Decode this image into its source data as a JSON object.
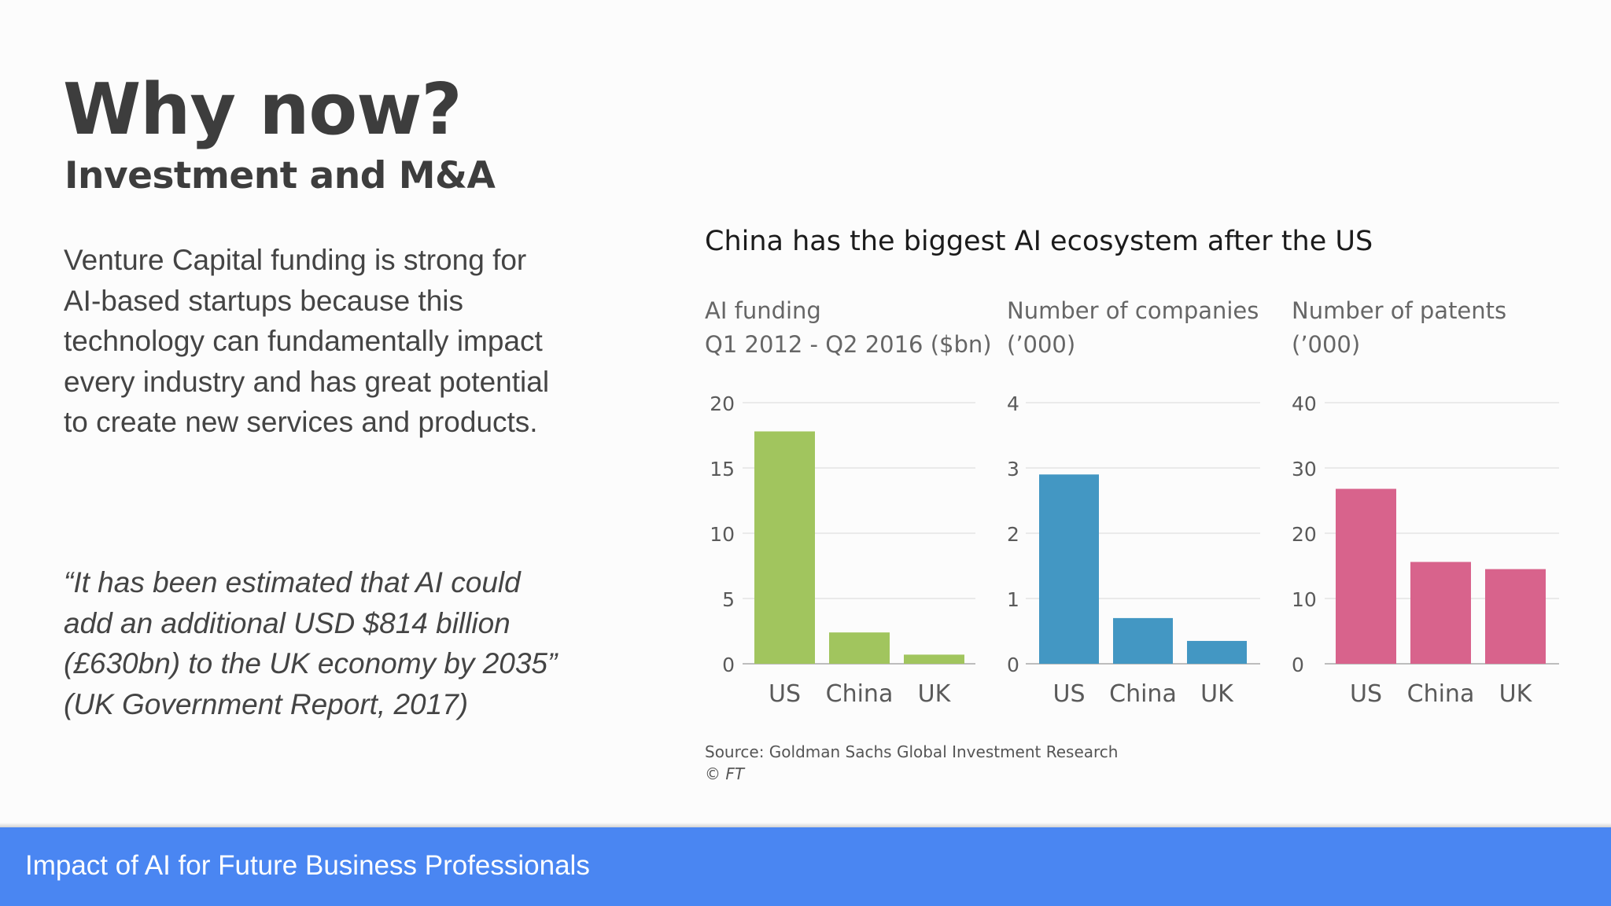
{
  "slide": {
    "title": "Why now?",
    "subtitle": "Investment and M&A",
    "body": "Venture Capital funding is strong for AI-based startups because this technology can fundamentally impact every industry and has great potential to create new services and products.",
    "quote": "“It has been estimated that AI could add an additional USD $814 billion (£630bn) to the UK economy by 2035” (UK Government Report, 2017)"
  },
  "chart_headline": "China has the biggest AI ecosystem after the US",
  "chart_data": [
    {
      "type": "bar",
      "title_lines": [
        "AI funding",
        "Q1 2012 - Q2 2016 ($bn)"
      ],
      "categories": [
        "US",
        "China",
        "UK"
      ],
      "values": [
        17.8,
        2.4,
        0.7
      ],
      "ylim": [
        0,
        20
      ],
      "yticks": [
        0,
        5,
        10,
        15,
        20
      ],
      "grid": true,
      "color": "#a1c55e"
    },
    {
      "type": "bar",
      "title_lines": [
        "Number of companies",
        "(’000)"
      ],
      "categories": [
        "US",
        "China",
        "UK"
      ],
      "values": [
        2.9,
        0.7,
        0.35
      ],
      "ylim": [
        0,
        4
      ],
      "yticks": [
        0,
        1,
        2,
        3,
        4
      ],
      "grid": true,
      "color": "#4397c3"
    },
    {
      "type": "bar",
      "title_lines": [
        "Number of patents",
        "(’000)"
      ],
      "categories": [
        "US",
        "China",
        "UK"
      ],
      "values": [
        26.8,
        15.6,
        14.5
      ],
      "ylim": [
        0,
        40
      ],
      "yticks": [
        0,
        10,
        20,
        30,
        40
      ],
      "grid": true,
      "color": "#d8638c"
    }
  ],
  "source": {
    "text": "Source: Goldman Sachs Global Investment Research",
    "credit": "© FT"
  },
  "footer": {
    "text": "Impact of AI for Future Business Professionals"
  }
}
